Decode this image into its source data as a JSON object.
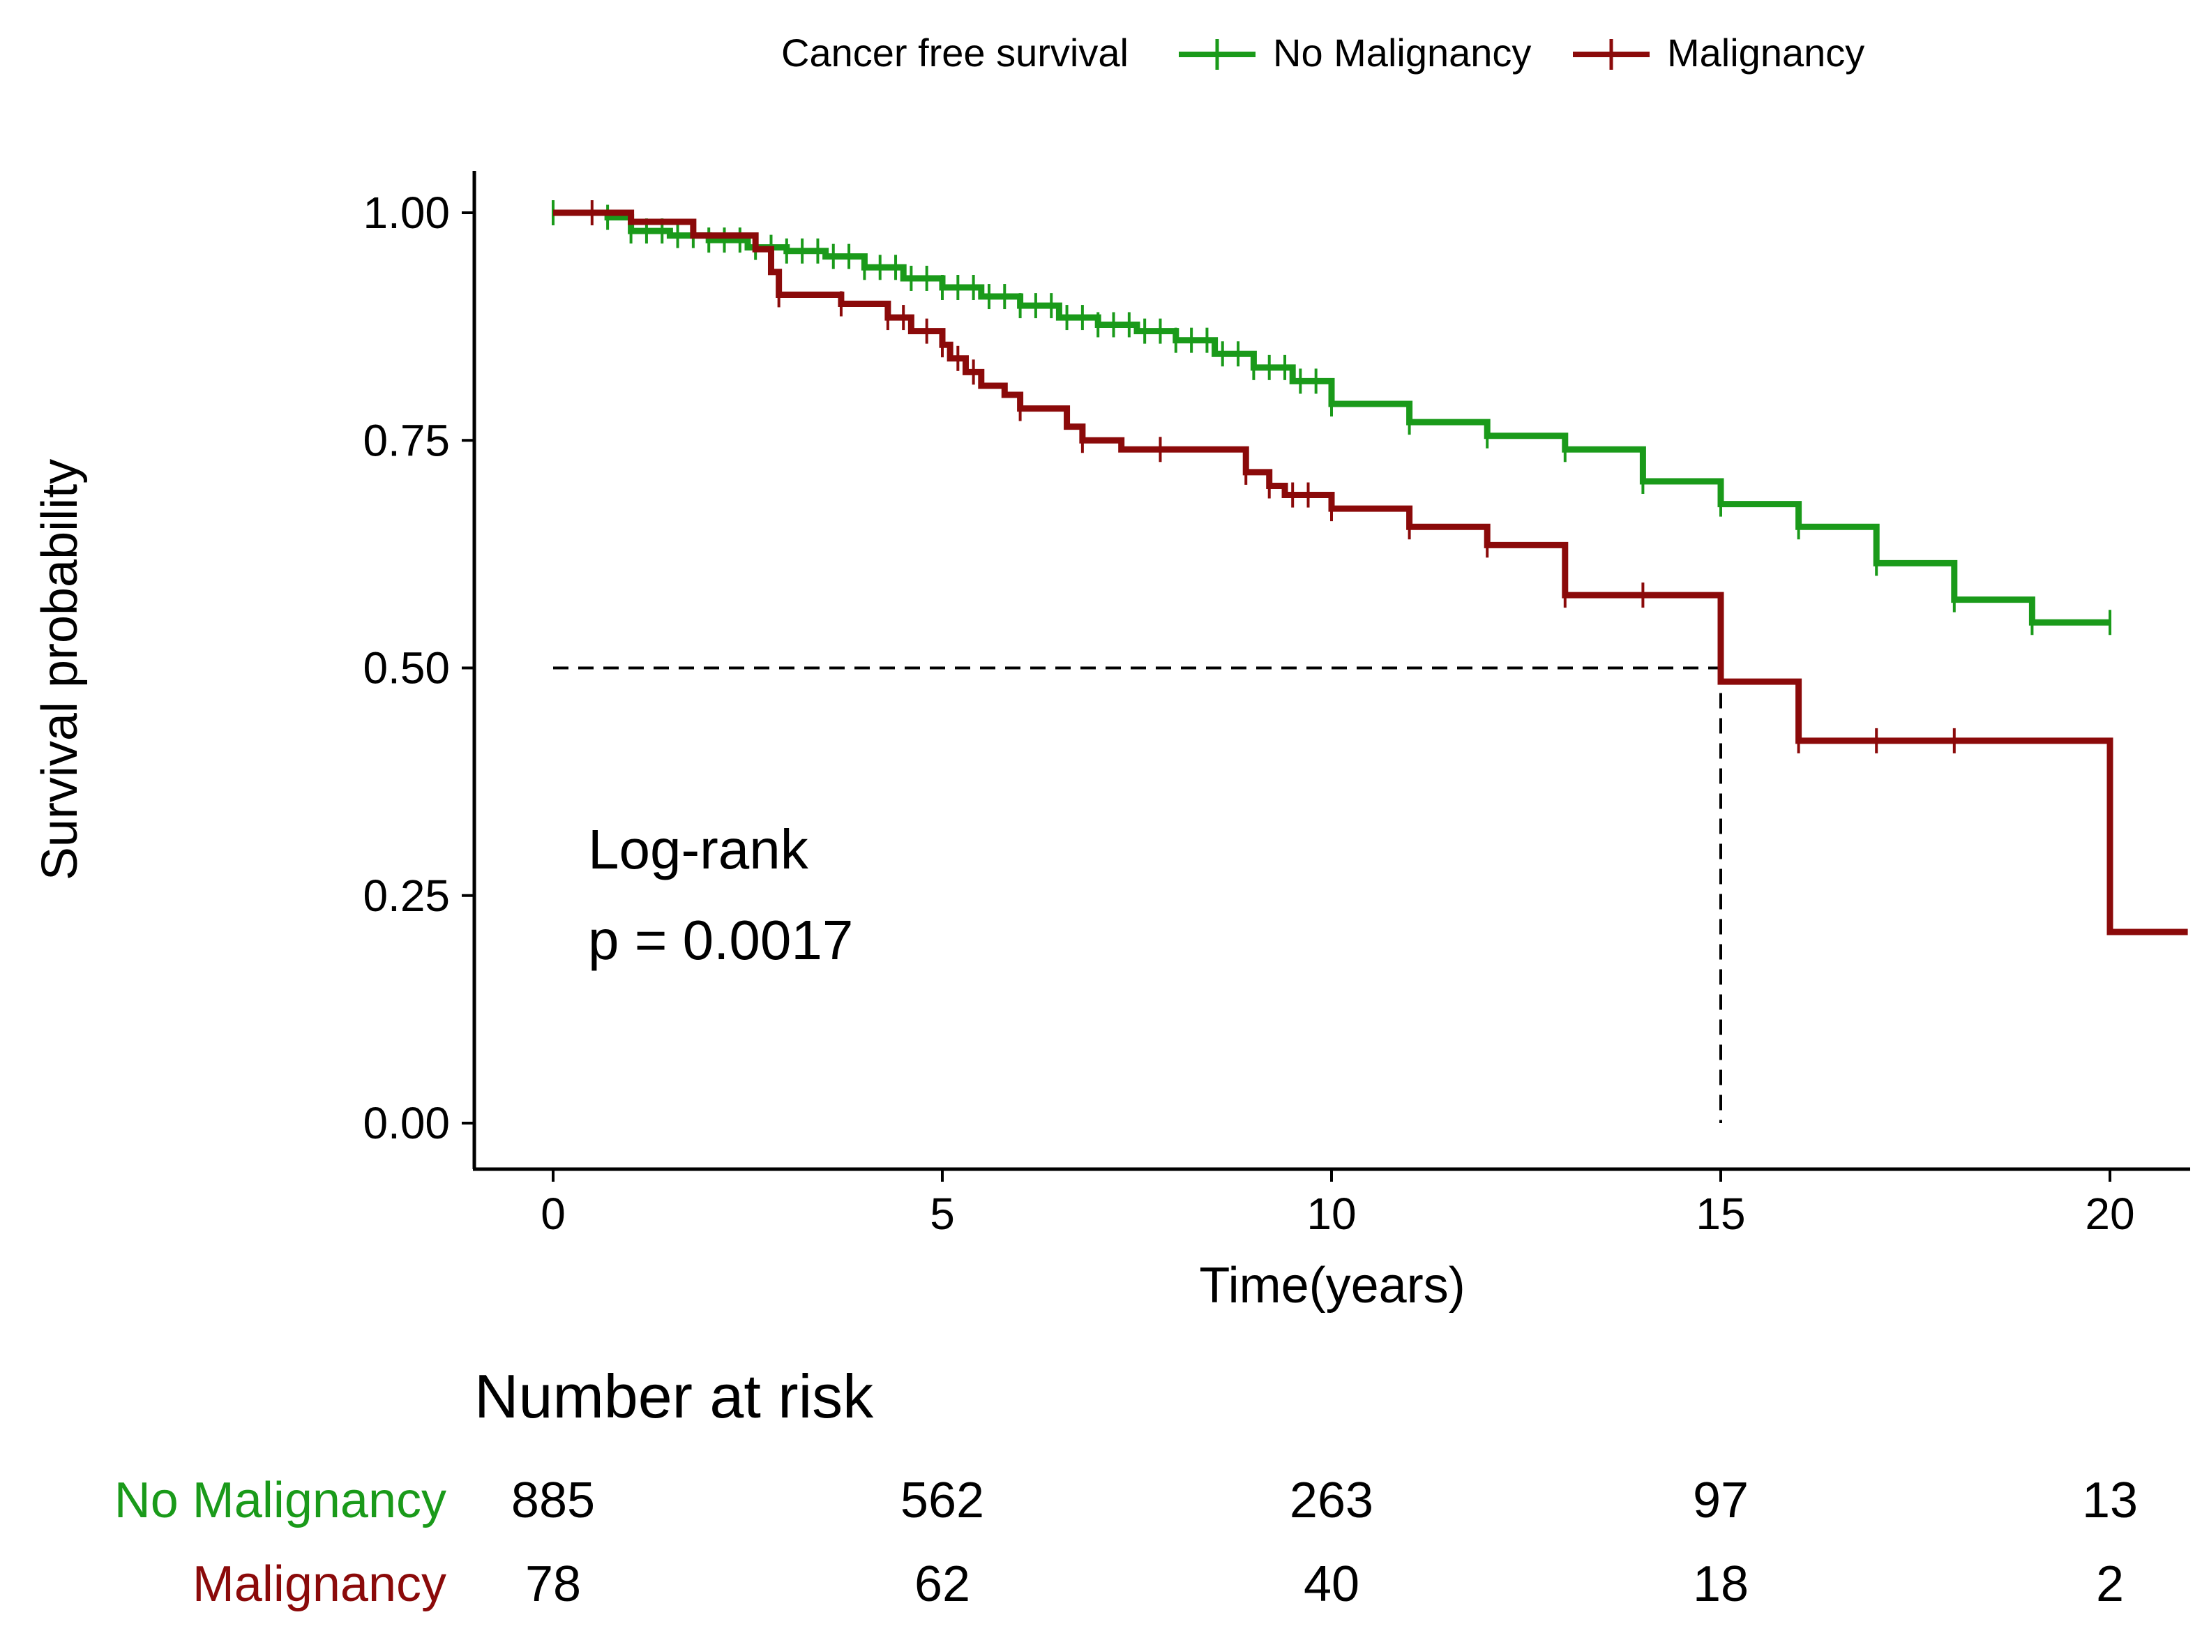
{
  "chart_data": {
    "type": "line",
    "subtype": "kaplan-meier",
    "xlabel": "Time(years)",
    "ylabel": "Survival probability",
    "xlim": [
      -1,
      21
    ],
    "ylim": [
      -0.05,
      1.05
    ],
    "x_ticks": [
      0,
      5,
      10,
      15,
      20
    ],
    "x_tick_labels": [
      "0",
      "5",
      "10",
      "15",
      "20"
    ],
    "y_ticks": [
      0,
      0.25,
      0.5,
      0.75,
      1.0
    ],
    "y_tick_labels": [
      "0.00",
      "0.25",
      "0.50",
      "0.75",
      "1.00"
    ],
    "legend": {
      "title": "Cancer free survival",
      "position": "top",
      "entries": [
        "No Malignancy",
        "Malignancy"
      ]
    },
    "annotation": {
      "line1": "Log-rank",
      "line2": "p = 0.0017"
    },
    "median_line": {
      "y": 0.5,
      "x_end": 15
    },
    "series": [
      {
        "name": "No Malignancy",
        "color": "#1a9a1a",
        "steps": [
          [
            0,
            1.0
          ],
          [
            0.7,
            0.995
          ],
          [
            1.0,
            0.98
          ],
          [
            1.5,
            0.975
          ],
          [
            2.0,
            0.97
          ],
          [
            2.5,
            0.962
          ],
          [
            3.0,
            0.958
          ],
          [
            3.5,
            0.952
          ],
          [
            4.0,
            0.94
          ],
          [
            4.5,
            0.928
          ],
          [
            5.0,
            0.918
          ],
          [
            5.5,
            0.908
          ],
          [
            6.0,
            0.898
          ],
          [
            6.5,
            0.885
          ],
          [
            7.0,
            0.877
          ],
          [
            7.5,
            0.87
          ],
          [
            8.0,
            0.86
          ],
          [
            8.5,
            0.845
          ],
          [
            9.0,
            0.83
          ],
          [
            9.5,
            0.815
          ],
          [
            10.0,
            0.79
          ],
          [
            11.0,
            0.77
          ],
          [
            12.0,
            0.755
          ],
          [
            13.0,
            0.74
          ],
          [
            14.0,
            0.705
          ],
          [
            15.0,
            0.68
          ],
          [
            16.0,
            0.655
          ],
          [
            17.0,
            0.615
          ],
          [
            18.0,
            0.575
          ],
          [
            19.0,
            0.55
          ],
          [
            20.0,
            0.55
          ]
        ],
        "end": 20.0,
        "censor": [
          0,
          0.7,
          1.0,
          1.2,
          1.4,
          1.6,
          1.8,
          2.0,
          2.2,
          2.4,
          2.6,
          2.8,
          3.0,
          3.2,
          3.4,
          3.6,
          3.8,
          4.0,
          4.2,
          4.4,
          4.6,
          4.8,
          5.0,
          5.2,
          5.4,
          5.6,
          5.8,
          6.0,
          6.2,
          6.4,
          6.6,
          6.8,
          7.0,
          7.2,
          7.4,
          7.6,
          7.8,
          8.0,
          8.2,
          8.4,
          8.6,
          8.8,
          9.0,
          9.2,
          9.4,
          9.6,
          9.8,
          10.0,
          11.0,
          12.0,
          13.0,
          14.0,
          15.0,
          16.0,
          17.0,
          18.0,
          19.0,
          20.0
        ]
      },
      {
        "name": "Malignancy",
        "color": "#8b0a0a",
        "steps": [
          [
            0,
            1.0
          ],
          [
            1.0,
            0.99
          ],
          [
            1.8,
            0.975
          ],
          [
            2.6,
            0.96
          ],
          [
            2.8,
            0.935
          ],
          [
            2.9,
            0.91
          ],
          [
            3.7,
            0.9
          ],
          [
            4.3,
            0.885
          ],
          [
            4.6,
            0.87
          ],
          [
            5.0,
            0.855
          ],
          [
            5.1,
            0.84
          ],
          [
            5.3,
            0.825
          ],
          [
            5.5,
            0.81
          ],
          [
            5.8,
            0.8
          ],
          [
            6.0,
            0.785
          ],
          [
            6.6,
            0.765
          ],
          [
            6.8,
            0.75
          ],
          [
            7.3,
            0.74
          ],
          [
            8.9,
            0.715
          ],
          [
            9.2,
            0.7
          ],
          [
            9.4,
            0.69
          ],
          [
            10.0,
            0.675
          ],
          [
            11.0,
            0.655
          ],
          [
            12.0,
            0.635
          ],
          [
            13.0,
            0.58
          ],
          [
            15.0,
            0.485
          ],
          [
            16.0,
            0.42
          ],
          [
            20.0,
            0.21
          ]
        ],
        "end": 21.0,
        "censor": [
          0.5,
          2.9,
          3.7,
          4.3,
          4.5,
          4.8,
          5.0,
          5.2,
          5.4,
          6.0,
          6.8,
          7.8,
          8.9,
          9.2,
          9.5,
          9.7,
          10.0,
          11.0,
          12.0,
          13.0,
          14.0,
          16.0,
          17.0,
          18.0
        ]
      }
    ],
    "risk_table": {
      "title": "Number at risk",
      "times": [
        0,
        5,
        10,
        15,
        20
      ],
      "rows": [
        {
          "label": "No Malignancy",
          "color": "#1a9a1a",
          "values": [
            "885",
            "562",
            "263",
            "97",
            "13"
          ]
        },
        {
          "label": "Malignancy",
          "color": "#8b0a0a",
          "values": [
            "78",
            "62",
            "40",
            "18",
            "2"
          ]
        }
      ]
    }
  }
}
